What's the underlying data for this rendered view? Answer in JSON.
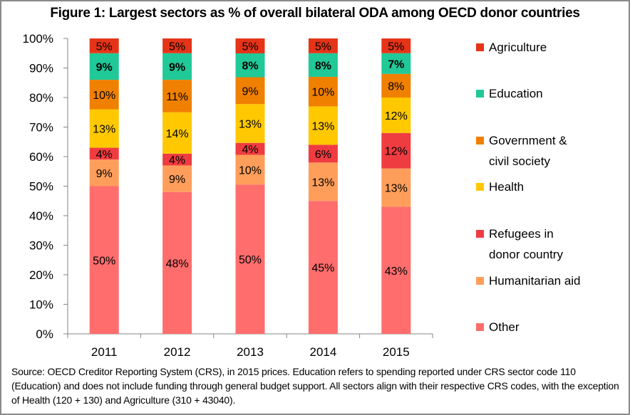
{
  "chart_data": {
    "type": "bar",
    "stacked": true,
    "percent": true,
    "title": "Figure 1: Largest sectors as % of overall bilateral ODA among OECD donor countries",
    "xlabel": "",
    "ylabel": "",
    "ylim": [
      0,
      100
    ],
    "yticks": [
      "0%",
      "10%",
      "20%",
      "30%",
      "40%",
      "50%",
      "60%",
      "70%",
      "80%",
      "90%",
      "100%"
    ],
    "grid": false,
    "legend_position": "right",
    "categories": [
      "2011",
      "2012",
      "2013",
      "2014",
      "2015"
    ],
    "series": [
      {
        "name": "Other",
        "color": "#ff6d6d",
        "values": [
          50,
          48,
          50,
          45,
          43
        ],
        "labels": [
          "50%",
          "48%",
          "50%",
          "45%",
          "43%"
        ],
        "bold": false
      },
      {
        "name": "Humanitarian aid",
        "color": "#ff9e5b",
        "values": [
          9,
          9,
          10,
          13,
          13
        ],
        "labels": [
          "9%",
          "9%",
          "10%",
          "13%",
          "13%"
        ],
        "bold": false
      },
      {
        "name": "Refugees in donor country",
        "color": "#ef3c41",
        "values": [
          4,
          4,
          4,
          6,
          12
        ],
        "labels": [
          "4%",
          "4%",
          "4%",
          "6%",
          "12%"
        ],
        "bold": false
      },
      {
        "name": "Health",
        "color": "#ffc800",
        "values": [
          13,
          14,
          13,
          13,
          12
        ],
        "labels": [
          "13%",
          "14%",
          "13%",
          "13%",
          "12%"
        ],
        "bold": false
      },
      {
        "name": "Government & civil society",
        "color": "#f08000",
        "values": [
          10,
          11,
          9,
          10,
          8
        ],
        "labels": [
          "10%",
          "11%",
          "9%",
          "10%",
          "8%"
        ],
        "bold": false
      },
      {
        "name": "Education",
        "color": "#20c997",
        "values": [
          9,
          9,
          8,
          8,
          7
        ],
        "labels": [
          "9%",
          "9%",
          "8%",
          "8%",
          "7%"
        ],
        "bold": true
      },
      {
        "name": "Agriculture",
        "color": "#e53418",
        "values": [
          5,
          5,
          5,
          5,
          5
        ],
        "labels": [
          "5%",
          "5%",
          "5%",
          "5%",
          "5%"
        ],
        "bold": false
      }
    ],
    "legend": [
      {
        "lines": [
          "Agriculture"
        ],
        "color": "#e53418"
      },
      {
        "lines": [
          "Education"
        ],
        "color": "#20c997"
      },
      {
        "lines": [
          "Government &",
          "civil society"
        ],
        "color": "#f08000"
      },
      {
        "lines": [
          "Health"
        ],
        "color": "#ffc800"
      },
      {
        "lines": [
          "Refugees in",
          "donor country"
        ],
        "color": "#ef3c41"
      },
      {
        "lines": [
          "Humanitarian aid"
        ],
        "color": "#ff9e5b"
      },
      {
        "lines": [
          "Other"
        ],
        "color": "#ff6d6d"
      }
    ],
    "source": "Source: OECD Creditor Reporting System (CRS), in 2015 prices. Education refers to spending reported under CRS sector code 110 (Education) and does not include funding through general budget support. All sectors align with their respective CRS codes, with the exception of Health (120 + 130) and Agriculture (310 + 43040)."
  }
}
